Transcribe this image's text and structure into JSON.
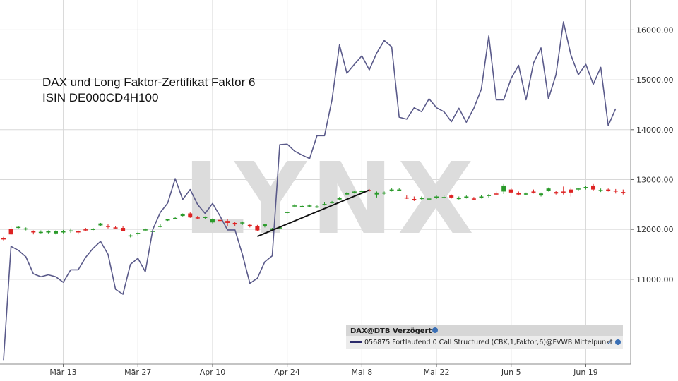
{
  "chart_data": {
    "type": "line",
    "title": "DAX und Long Faktor-Zertifikat Faktor 6",
    "subtitle": "ISIN DE000CD4H100",
    "watermark": "LYNX",
    "xlabel": "",
    "ylabel": "",
    "ylim": [
      9300,
      16600
    ],
    "y_ticks": [
      11000,
      12000,
      13000,
      14000,
      15000,
      16000
    ],
    "y_tick_labels": [
      "11000.00",
      "12000.00",
      "13000.00",
      "14000.00",
      "15000.00",
      "16000.00"
    ],
    "y_axis_position": "right",
    "grid": true,
    "x_ticks": [
      {
        "label": "Mär 13",
        "index": 8
      },
      {
        "label": "Mär 27",
        "index": 18
      },
      {
        "label": "Apr 10",
        "index": 28
      },
      {
        "label": "Apr 24",
        "index": 38
      },
      {
        "label": "Mai 8",
        "index": 48
      },
      {
        "label": "Mai 22",
        "index": 58
      },
      {
        "label": "Jun 5",
        "index": 68
      },
      {
        "label": "Jun 19",
        "index": 78
      }
    ],
    "legend": {
      "position": "bottom-right",
      "header": "DAX@DTB Verzögert",
      "entry": "056875 Fortlaufend 0 Call Structured (CBK,1,Faktor,6)@FVWB Mittelpunkt",
      "line_color": "#2b2b6b"
    },
    "colors": {
      "up": "#2a9a2a",
      "down": "#dd2222",
      "line": "#5a5a8a",
      "trend": "#111111",
      "grid": "#d8d8d8"
    },
    "series": [
      {
        "name": "056875 Fortlaufend 0 Call Structured (CBK,1,Faktor,6)@FVWB Mittelpunkt",
        "type": "line",
        "values": [
          9380,
          11660,
          11580,
          11450,
          11110,
          11050,
          11090,
          11050,
          10940,
          11190,
          11190,
          11440,
          11620,
          11760,
          11500,
          10800,
          10700,
          11300,
          11420,
          11150,
          12000,
          12340,
          12530,
          13020,
          12600,
          12800,
          12500,
          12320,
          12520,
          12270,
          11990,
          11990,
          11500,
          10920,
          11020,
          11350,
          11470,
          13700,
          13710,
          13570,
          13490,
          13420,
          13880,
          13880,
          14600,
          15700,
          15130,
          15310,
          15480,
          15200,
          15540,
          15790,
          15660,
          14250,
          14210,
          14440,
          14360,
          14620,
          14440,
          14360,
          14160,
          14430,
          14150,
          14430,
          14810,
          15880,
          14600,
          14600,
          15030,
          15290,
          14600,
          15340,
          15640,
          14620,
          15100,
          16160,
          15500,
          15100,
          15310,
          14910,
          15250,
          14080,
          14420
        ]
      },
      {
        "name": "",
        "type": "candlestick",
        "ohlc": [
          [
            11820,
            11850,
            11780,
            11800
          ],
          [
            12010,
            12060,
            11890,
            11900
          ],
          [
            12040,
            12060,
            12020,
            12050
          ],
          [
            12000,
            12040,
            11980,
            12020
          ],
          [
            11960,
            11980,
            11900,
            11940
          ],
          [
            11940,
            11980,
            11920,
            11950
          ],
          [
            11950,
            11980,
            11920,
            11960
          ],
          [
            11920,
            11980,
            11900,
            11960
          ],
          [
            11950,
            11990,
            11920,
            11960
          ],
          [
            11960,
            12020,
            11930,
            11980
          ],
          [
            11960,
            11980,
            11900,
            11940
          ],
          [
            12000,
            12030,
            11970,
            11990
          ],
          [
            12000,
            12030,
            11980,
            12010
          ],
          [
            12080,
            12130,
            12070,
            12120
          ],
          [
            12070,
            12100,
            12020,
            12050
          ],
          [
            12040,
            12060,
            12020,
            12030
          ],
          [
            12030,
            12060,
            11960,
            11970
          ],
          [
            11860,
            11900,
            11840,
            11880
          ],
          [
            11910,
            11950,
            11880,
            11930
          ],
          [
            11990,
            12020,
            11960,
            12000
          ],
          [
            11950,
            12000,
            11940,
            11970
          ],
          [
            12060,
            12110,
            12040,
            12070
          ],
          [
            12180,
            12210,
            12170,
            12200
          ],
          [
            12220,
            12250,
            12200,
            12230
          ],
          [
            12270,
            12320,
            12260,
            12300
          ],
          [
            12320,
            12340,
            12230,
            12240
          ],
          [
            12240,
            12270,
            12200,
            12220
          ],
          [
            12240,
            12260,
            12210,
            12250
          ],
          [
            12140,
            12220,
            12120,
            12200
          ],
          [
            12190,
            12230,
            12160,
            12170
          ],
          [
            12170,
            12200,
            12070,
            12130
          ],
          [
            12130,
            12150,
            12060,
            12100
          ],
          [
            12120,
            12160,
            12090,
            12140
          ],
          [
            12090,
            12100,
            12040,
            12060
          ],
          [
            12060,
            12090,
            11960,
            11980
          ],
          [
            12070,
            12110,
            12040,
            12100
          ],
          [
            11990,
            12030,
            11970,
            12020
          ],
          [
            12030,
            12060,
            12000,
            12040
          ],
          [
            12330,
            12360,
            12300,
            12350
          ],
          [
            12470,
            12510,
            12440,
            12480
          ],
          [
            12460,
            12490,
            12440,
            12470
          ],
          [
            12470,
            12500,
            12450,
            12480
          ],
          [
            12450,
            12480,
            12430,
            12460
          ],
          [
            12490,
            12540,
            12480,
            12510
          ],
          [
            12530,
            12570,
            12520,
            12550
          ],
          [
            12600,
            12650,
            12580,
            12630
          ],
          [
            12700,
            12750,
            12680,
            12730
          ],
          [
            12740,
            12780,
            12720,
            12760
          ],
          [
            12760,
            12790,
            12740,
            12770
          ],
          [
            12790,
            12810,
            12760,
            12780
          ],
          [
            12700,
            12760,
            12640,
            12740
          ],
          [
            12720,
            12760,
            12700,
            12740
          ],
          [
            12780,
            12830,
            12760,
            12800
          ],
          [
            12790,
            12830,
            12770,
            12800
          ],
          [
            12640,
            12680,
            12610,
            12630
          ],
          [
            12610,
            12660,
            12570,
            12600
          ],
          [
            12620,
            12660,
            12590,
            12630
          ],
          [
            12600,
            12650,
            12580,
            12620
          ],
          [
            12630,
            12680,
            12610,
            12660
          ],
          [
            12640,
            12680,
            12620,
            12650
          ],
          [
            12680,
            12700,
            12620,
            12640
          ],
          [
            12620,
            12660,
            12600,
            12630
          ],
          [
            12640,
            12680,
            12620,
            12660
          ],
          [
            12620,
            12650,
            12590,
            12610
          ],
          [
            12650,
            12690,
            12620,
            12660
          ],
          [
            12680,
            12710,
            12640,
            12690
          ],
          [
            12720,
            12760,
            12690,
            12700
          ],
          [
            12760,
            12910,
            12710,
            12880
          ],
          [
            12800,
            12830,
            12720,
            12740
          ],
          [
            12730,
            12760,
            12680,
            12700
          ],
          [
            12700,
            12740,
            12690,
            12720
          ],
          [
            12760,
            12800,
            12720,
            12740
          ],
          [
            12680,
            12740,
            12660,
            12720
          ],
          [
            12780,
            12840,
            12760,
            12820
          ],
          [
            12750,
            12780,
            12700,
            12720
          ],
          [
            12760,
            12860,
            12700,
            12740
          ],
          [
            12800,
            12840,
            12660,
            12740
          ],
          [
            12810,
            12830,
            12780,
            12820
          ],
          [
            12830,
            12870,
            12800,
            12850
          ],
          [
            12880,
            12910,
            12780,
            12800
          ],
          [
            12780,
            12820,
            12750,
            12790
          ],
          [
            12800,
            12820,
            12760,
            12790
          ],
          [
            12780,
            12810,
            12720,
            12770
          ],
          [
            12750,
            12800,
            12700,
            12740
          ]
        ]
      }
    ],
    "annotations": [
      {
        "type": "trendline",
        "from_index": 34,
        "from_value": 11860,
        "to_index": 49,
        "to_value": 12790
      }
    ]
  }
}
